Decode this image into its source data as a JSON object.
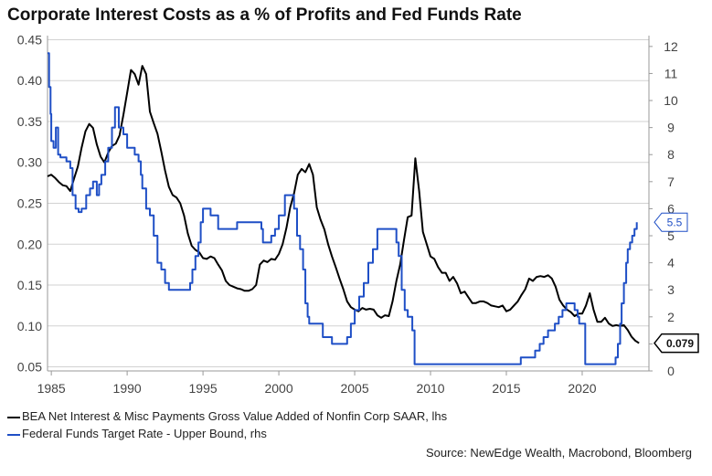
{
  "title": "Corporate Interest Costs as a % of Profits and Fed Funds Rate",
  "legend": [
    {
      "label": "BEA Net Interest & Misc Payments Gross Value Added of Nonfin Corp SAAR, lhs",
      "color": "#000000"
    },
    {
      "label": "Federal Funds Target Rate - Upper Bound, rhs",
      "color": "#1f4fc6"
    }
  ],
  "source": "Source: NewEdge Wealth, Macrobond, Bloomberg",
  "chart_data": {
    "type": "line",
    "x_range": [
      1984.75,
      2024.4
    ],
    "x_ticks": [
      1985,
      1990,
      1995,
      2000,
      2005,
      2010,
      2015,
      2020
    ],
    "y_left": {
      "range": [
        0.045,
        0.455
      ],
      "ticks": [
        "0.05",
        "0.10",
        "0.15",
        "0.20",
        "0.25",
        "0.30",
        "0.35",
        "0.40",
        "0.45"
      ]
    },
    "y_right": {
      "range": [
        0,
        12.4
      ],
      "ticks": [
        "0",
        "1",
        "2",
        "3",
        "4",
        "5",
        "6",
        "7",
        "8",
        "9",
        "10",
        "11",
        "12"
      ]
    },
    "grid": true,
    "series": [
      {
        "name": "BEA Net Interest & Misc Payments Gross Value Added of Nonfin Corp SAAR, lhs",
        "axis": "left",
        "color": "#000000",
        "end_label": "0.079",
        "points": [
          [
            1984.75,
            0.283
          ],
          [
            1985.0,
            0.285
          ],
          [
            1985.25,
            0.281
          ],
          [
            1985.5,
            0.276
          ],
          [
            1985.75,
            0.272
          ],
          [
            1986.0,
            0.271
          ],
          [
            1986.25,
            0.265
          ],
          [
            1986.5,
            0.28
          ],
          [
            1986.75,
            0.295
          ],
          [
            1987.0,
            0.318
          ],
          [
            1987.25,
            0.338
          ],
          [
            1987.5,
            0.347
          ],
          [
            1987.75,
            0.342
          ],
          [
            1988.0,
            0.322
          ],
          [
            1988.25,
            0.307
          ],
          [
            1988.5,
            0.3
          ],
          [
            1988.75,
            0.312
          ],
          [
            1989.0,
            0.32
          ],
          [
            1989.25,
            0.323
          ],
          [
            1989.5,
            0.333
          ],
          [
            1989.75,
            0.358
          ],
          [
            1990.0,
            0.385
          ],
          [
            1990.25,
            0.413
          ],
          [
            1990.5,
            0.408
          ],
          [
            1990.75,
            0.395
          ],
          [
            1991.0,
            0.418
          ],
          [
            1991.25,
            0.408
          ],
          [
            1991.5,
            0.362
          ],
          [
            1991.75,
            0.348
          ],
          [
            1992.0,
            0.335
          ],
          [
            1992.25,
            0.313
          ],
          [
            1992.5,
            0.29
          ],
          [
            1992.75,
            0.27
          ],
          [
            1993.0,
            0.26
          ],
          [
            1993.25,
            0.257
          ],
          [
            1993.5,
            0.25
          ],
          [
            1993.75,
            0.235
          ],
          [
            1994.0,
            0.213
          ],
          [
            1994.25,
            0.198
          ],
          [
            1994.5,
            0.193
          ],
          [
            1994.75,
            0.19
          ],
          [
            1995.0,
            0.183
          ],
          [
            1995.25,
            0.182
          ],
          [
            1995.5,
            0.185
          ],
          [
            1995.75,
            0.183
          ],
          [
            1996.0,
            0.175
          ],
          [
            1996.25,
            0.168
          ],
          [
            1996.5,
            0.155
          ],
          [
            1996.75,
            0.15
          ],
          [
            1997.0,
            0.148
          ],
          [
            1997.25,
            0.146
          ],
          [
            1997.5,
            0.145
          ],
          [
            1997.75,
            0.143
          ],
          [
            1998.0,
            0.143
          ],
          [
            1998.25,
            0.145
          ],
          [
            1998.5,
            0.15
          ],
          [
            1998.75,
            0.175
          ],
          [
            1999.0,
            0.18
          ],
          [
            1999.25,
            0.178
          ],
          [
            1999.5,
            0.182
          ],
          [
            1999.75,
            0.181
          ],
          [
            2000.0,
            0.188
          ],
          [
            2000.25,
            0.2
          ],
          [
            2000.5,
            0.22
          ],
          [
            2000.75,
            0.245
          ],
          [
            2001.0,
            0.262
          ],
          [
            2001.25,
            0.285
          ],
          [
            2001.5,
            0.292
          ],
          [
            2001.75,
            0.288
          ],
          [
            2002.0,
            0.298
          ],
          [
            2002.25,
            0.285
          ],
          [
            2002.5,
            0.245
          ],
          [
            2002.75,
            0.23
          ],
          [
            2003.0,
            0.218
          ],
          [
            2003.25,
            0.2
          ],
          [
            2003.5,
            0.185
          ],
          [
            2003.75,
            0.172
          ],
          [
            2004.0,
            0.158
          ],
          [
            2004.25,
            0.145
          ],
          [
            2004.5,
            0.13
          ],
          [
            2004.75,
            0.123
          ],
          [
            2005.0,
            0.12
          ],
          [
            2005.25,
            0.118
          ],
          [
            2005.5,
            0.122
          ],
          [
            2005.75,
            0.12
          ],
          [
            2006.0,
            0.121
          ],
          [
            2006.25,
            0.12
          ],
          [
            2006.5,
            0.113
          ],
          [
            2006.75,
            0.11
          ],
          [
            2007.0,
            0.113
          ],
          [
            2007.25,
            0.112
          ],
          [
            2007.5,
            0.13
          ],
          [
            2007.75,
            0.155
          ],
          [
            2008.0,
            0.175
          ],
          [
            2008.25,
            0.205
          ],
          [
            2008.5,
            0.233
          ],
          [
            2008.75,
            0.235
          ],
          [
            2009.0,
            0.305
          ],
          [
            2009.25,
            0.265
          ],
          [
            2009.5,
            0.215
          ],
          [
            2009.75,
            0.2
          ],
          [
            2010.0,
            0.185
          ],
          [
            2010.25,
            0.182
          ],
          [
            2010.5,
            0.172
          ],
          [
            2010.75,
            0.165
          ],
          [
            2011.0,
            0.165
          ],
          [
            2011.25,
            0.155
          ],
          [
            2011.5,
            0.16
          ],
          [
            2011.75,
            0.152
          ],
          [
            2012.0,
            0.14
          ],
          [
            2012.25,
            0.142
          ],
          [
            2012.5,
            0.135
          ],
          [
            2012.75,
            0.128
          ],
          [
            2013.0,
            0.128
          ],
          [
            2013.25,
            0.13
          ],
          [
            2013.5,
            0.13
          ],
          [
            2013.75,
            0.128
          ],
          [
            2014.0,
            0.125
          ],
          [
            2014.25,
            0.124
          ],
          [
            2014.5,
            0.123
          ],
          [
            2014.75,
            0.125
          ],
          [
            2015.0,
            0.118
          ],
          [
            2015.25,
            0.12
          ],
          [
            2015.5,
            0.125
          ],
          [
            2015.75,
            0.13
          ],
          [
            2016.0,
            0.138
          ],
          [
            2016.25,
            0.145
          ],
          [
            2016.5,
            0.158
          ],
          [
            2016.75,
            0.155
          ],
          [
            2017.0,
            0.16
          ],
          [
            2017.25,
            0.161
          ],
          [
            2017.5,
            0.16
          ],
          [
            2017.75,
            0.162
          ],
          [
            2018.0,
            0.158
          ],
          [
            2018.25,
            0.148
          ],
          [
            2018.5,
            0.132
          ],
          [
            2018.75,
            0.125
          ],
          [
            2019.0,
            0.12
          ],
          [
            2019.25,
            0.117
          ],
          [
            2019.5,
            0.112
          ],
          [
            2019.75,
            0.115
          ],
          [
            2020.0,
            0.115
          ],
          [
            2020.25,
            0.125
          ],
          [
            2020.5,
            0.14
          ],
          [
            2020.75,
            0.12
          ],
          [
            2021.0,
            0.105
          ],
          [
            2021.25,
            0.105
          ],
          [
            2021.5,
            0.11
          ],
          [
            2021.75,
            0.103
          ],
          [
            2022.0,
            0.1
          ],
          [
            2022.25,
            0.101
          ],
          [
            2022.5,
            0.1
          ],
          [
            2022.75,
            0.101
          ],
          [
            2023.0,
            0.095
          ],
          [
            2023.25,
            0.087
          ],
          [
            2023.5,
            0.082
          ],
          [
            2023.75,
            0.079
          ]
        ]
      },
      {
        "name": "Federal Funds Target Rate - Upper Bound, rhs",
        "axis": "right",
        "color": "#1f4fc6",
        "end_label": "5.5",
        "points": [
          [
            1984.75,
            11.75
          ],
          [
            1984.85,
            10.5
          ],
          [
            1984.95,
            9.5
          ],
          [
            1985.0,
            8.5
          ],
          [
            1985.15,
            8.25
          ],
          [
            1985.3,
            9.0
          ],
          [
            1985.45,
            8.0
          ],
          [
            1985.6,
            7.9
          ],
          [
            1986.0,
            7.75
          ],
          [
            1986.25,
            7.5
          ],
          [
            1986.4,
            6.5
          ],
          [
            1986.6,
            6.0
          ],
          [
            1986.8,
            5.875
          ],
          [
            1987.0,
            6.0
          ],
          [
            1987.3,
            6.5
          ],
          [
            1987.55,
            6.75
          ],
          [
            1987.75,
            7.0
          ],
          [
            1988.0,
            6.5
          ],
          [
            1988.15,
            6.9
          ],
          [
            1988.3,
            7.25
          ],
          [
            1988.55,
            7.75
          ],
          [
            1988.75,
            8.25
          ],
          [
            1989.0,
            9.0
          ],
          [
            1989.2,
            9.75
          ],
          [
            1989.45,
            9.0
          ],
          [
            1989.75,
            8.75
          ],
          [
            1990.0,
            8.25
          ],
          [
            1990.5,
            8.0
          ],
          [
            1990.75,
            7.75
          ],
          [
            1990.9,
            7.25
          ],
          [
            1991.0,
            6.75
          ],
          [
            1991.25,
            6.0
          ],
          [
            1991.5,
            5.75
          ],
          [
            1991.75,
            5.0
          ],
          [
            1992.0,
            4.0
          ],
          [
            1992.25,
            3.75
          ],
          [
            1992.5,
            3.25
          ],
          [
            1992.75,
            3.0
          ],
          [
            1994.0,
            3.0
          ],
          [
            1994.15,
            3.25
          ],
          [
            1994.3,
            3.75
          ],
          [
            1994.5,
            4.25
          ],
          [
            1994.7,
            4.75
          ],
          [
            1994.85,
            5.5
          ],
          [
            1995.0,
            6.0
          ],
          [
            1995.5,
            5.75
          ],
          [
            1996.0,
            5.25
          ],
          [
            1997.25,
            5.5
          ],
          [
            1998.75,
            5.5
          ],
          [
            1998.85,
            5.25
          ],
          [
            1998.95,
            4.75
          ],
          [
            1999.5,
            5.0
          ],
          [
            1999.75,
            5.25
          ],
          [
            2000.0,
            5.75
          ],
          [
            2000.4,
            6.5
          ],
          [
            2001.0,
            6.0
          ],
          [
            2001.2,
            5.0
          ],
          [
            2001.4,
            4.5
          ],
          [
            2001.6,
            3.75
          ],
          [
            2001.75,
            2.5
          ],
          [
            2001.9,
            2.0
          ],
          [
            2002.0,
            1.75
          ],
          [
            2002.9,
            1.25
          ],
          [
            2003.5,
            1.0
          ],
          [
            2004.5,
            1.25
          ],
          [
            2004.75,
            1.75
          ],
          [
            2005.0,
            2.25
          ],
          [
            2005.3,
            2.75
          ],
          [
            2005.6,
            3.25
          ],
          [
            2005.9,
            4.0
          ],
          [
            2006.2,
            4.5
          ],
          [
            2006.5,
            5.25
          ],
          [
            2007.6,
            5.25
          ],
          [
            2007.75,
            4.75
          ],
          [
            2007.9,
            4.25
          ],
          [
            2008.1,
            3.0
          ],
          [
            2008.3,
            2.25
          ],
          [
            2008.5,
            2.0
          ],
          [
            2008.8,
            1.5
          ],
          [
            2008.95,
            0.25
          ],
          [
            2015.95,
            0.5
          ],
          [
            2016.9,
            0.75
          ],
          [
            2017.2,
            1.0
          ],
          [
            2017.45,
            1.25
          ],
          [
            2017.75,
            1.5
          ],
          [
            2018.2,
            1.75
          ],
          [
            2018.45,
            2.0
          ],
          [
            2018.7,
            2.25
          ],
          [
            2018.95,
            2.5
          ],
          [
            2019.5,
            2.25
          ],
          [
            2019.7,
            2.0
          ],
          [
            2019.8,
            1.75
          ],
          [
            2020.2,
            0.25
          ],
          [
            2022.2,
            0.5
          ],
          [
            2022.35,
            1.0
          ],
          [
            2022.5,
            1.75
          ],
          [
            2022.6,
            2.5
          ],
          [
            2022.75,
            3.25
          ],
          [
            2022.9,
            4.0
          ],
          [
            2023.0,
            4.5
          ],
          [
            2023.15,
            4.75
          ],
          [
            2023.3,
            5.0
          ],
          [
            2023.45,
            5.25
          ],
          [
            2023.6,
            5.5
          ]
        ]
      }
    ]
  }
}
